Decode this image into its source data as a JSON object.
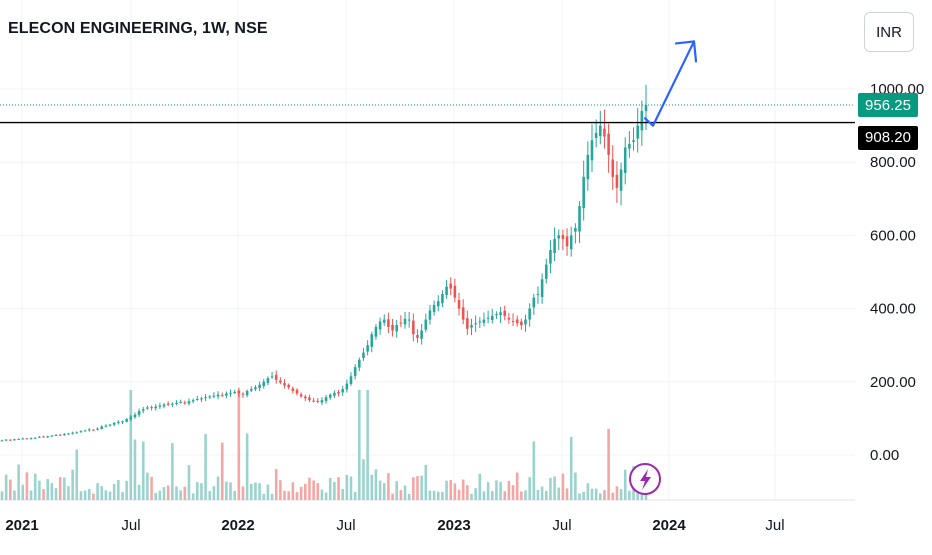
{
  "header": {
    "title": "ELECON ENGINEERING, 1W, NSE",
    "currency_label": "INR"
  },
  "icons": {
    "lightning": "lightning-icon"
  },
  "colors": {
    "up": "#26a69a",
    "down": "#ef5350",
    "vol_up": "#9ad3cd",
    "vol_down": "#f5a6a4",
    "arrow": "#2962ff",
    "grid": "#f0f3fa",
    "lightning": "#9c27b0",
    "last_price": "#089981"
  },
  "chart_data": {
    "type": "candlestick",
    "title": "ELECON ENGINEERING, 1W, NSE",
    "x_ticks": [
      "2021",
      "Jul",
      "2022",
      "Jul",
      "2023",
      "Jul",
      "2024",
      "Jul"
    ],
    "y_ticks": [
      "0.00",
      "200.00",
      "400.00",
      "600.00",
      "800.00",
      "1000.00"
    ],
    "ylim": [
      0,
      1000
    ],
    "last_price": 956.25,
    "last_price_label": "956.25",
    "horizontal_level": 908.2,
    "horizontal_level_label": "908.20",
    "grid": true,
    "projection_arrow": {
      "from": 908,
      "to": 1130,
      "direction": "up"
    },
    "close_series": [
      40,
      42,
      41,
      43,
      44,
      45,
      44,
      46,
      47,
      50,
      49,
      51,
      53,
      55,
      54,
      57,
      59,
      61,
      62,
      65,
      67,
      70,
      68,
      72,
      78,
      80,
      83,
      88,
      90,
      92,
      98,
      105,
      110,
      120,
      125,
      130,
      128,
      132,
      135,
      138,
      137,
      140,
      142,
      145,
      143,
      147,
      150,
      153,
      155,
      158,
      160,
      162,
      165,
      163,
      168,
      170,
      172,
      168,
      165,
      175,
      180,
      185,
      192,
      200,
      210,
      215,
      205,
      198,
      190,
      185,
      175,
      168,
      160,
      155,
      150,
      148,
      145,
      150,
      158,
      165,
      170,
      168,
      180,
      195,
      215,
      240,
      260,
      280,
      300,
      330,
      350,
      365,
      370,
      350,
      340,
      355,
      360,
      372,
      370,
      330,
      320,
      340,
      370,
      395,
      410,
      420,
      440,
      460,
      455,
      430,
      400,
      370,
      345,
      355,
      360,
      365,
      370,
      375,
      380,
      385,
      390,
      380,
      370,
      365,
      360,
      355,
      370,
      400,
      430,
      440,
      480,
      520,
      560,
      590,
      600,
      590,
      570,
      600,
      620,
      680,
      760,
      820,
      860,
      880,
      900,
      870,
      820,
      760,
      730,
      780,
      840,
      850,
      860,
      900,
      940,
      956
    ]
  }
}
